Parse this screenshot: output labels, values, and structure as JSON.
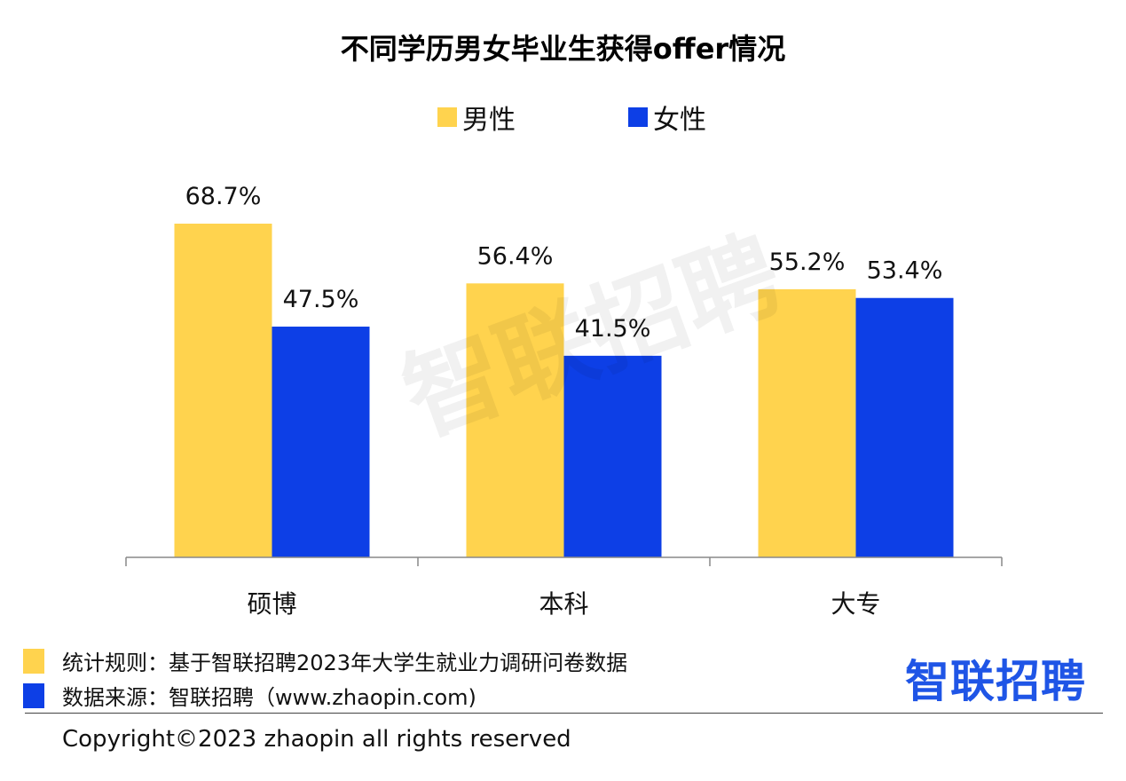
{
  "chart_data": {
    "type": "bar",
    "title": "不同学历男女毕业生获得offer情况",
    "categories": [
      "硕博",
      "本科",
      "大专"
    ],
    "series": [
      {
        "name": "男性",
        "color": "#ffd34e",
        "values": [
          68.7,
          56.4,
          55.2
        ],
        "labels": [
          "68.7%",
          "56.4%",
          "55.2%"
        ]
      },
      {
        "name": "女性",
        "color": "#0d3fe6",
        "values": [
          47.5,
          41.5,
          53.4
        ],
        "labels": [
          "47.5%",
          "41.5%",
          "53.4%"
        ]
      }
    ],
    "ylim": [
      0,
      100
    ],
    "grid": false,
    "legend": "top-center",
    "xlabel": "",
    "ylabel": ""
  },
  "watermark": "智联招聘",
  "footnotes": [
    {
      "color": "#ffd34e",
      "text": "统计规则：基于智联招聘2023年大学生就业力调研问卷数据"
    },
    {
      "color": "#0d3fe6",
      "text": "数据来源：智联招聘（www.zhaopin.com)"
    }
  ],
  "logo_text": "智联招聘",
  "copyright": "Copyright©2023 zhaopin all rights reserved"
}
